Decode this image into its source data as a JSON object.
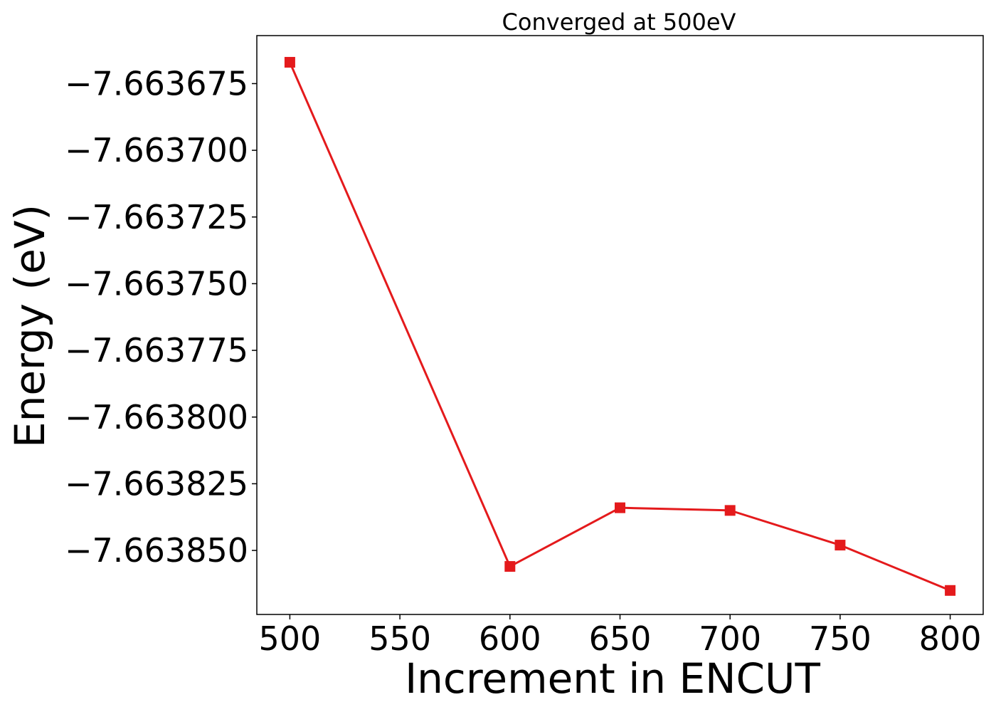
{
  "chart_data": {
    "type": "line",
    "title": "Converged at 500eV",
    "xlabel": "Increment in ENCUT",
    "ylabel": "Energy (eV)",
    "x": [
      500,
      600,
      650,
      700,
      750,
      800
    ],
    "series": [
      {
        "values": [
          -7.663667,
          -7.663856,
          -7.663834,
          -7.663835,
          -7.663848,
          -7.663865
        ],
        "color": "#e41a1c",
        "marker": "square"
      }
    ],
    "xticks": [
      500,
      550,
      600,
      650,
      700,
      750,
      800
    ],
    "xtick_labels": [
      "500",
      "550",
      "600",
      "650",
      "700",
      "750",
      "800"
    ],
    "yticks": [
      -7.663675,
      -7.6637,
      -7.663725,
      -7.66375,
      -7.663775,
      -7.6638,
      -7.663825,
      -7.66385
    ],
    "ytick_labels": [
      "−7.663675",
      "−7.663700",
      "−7.663725",
      "−7.663750",
      "−7.663775",
      "−7.663800",
      "−7.663825",
      "−7.663850"
    ],
    "xlim": [
      485,
      815
    ],
    "ylim": [
      -7.663874,
      -7.663657
    ],
    "grid": false,
    "legend": "none"
  }
}
